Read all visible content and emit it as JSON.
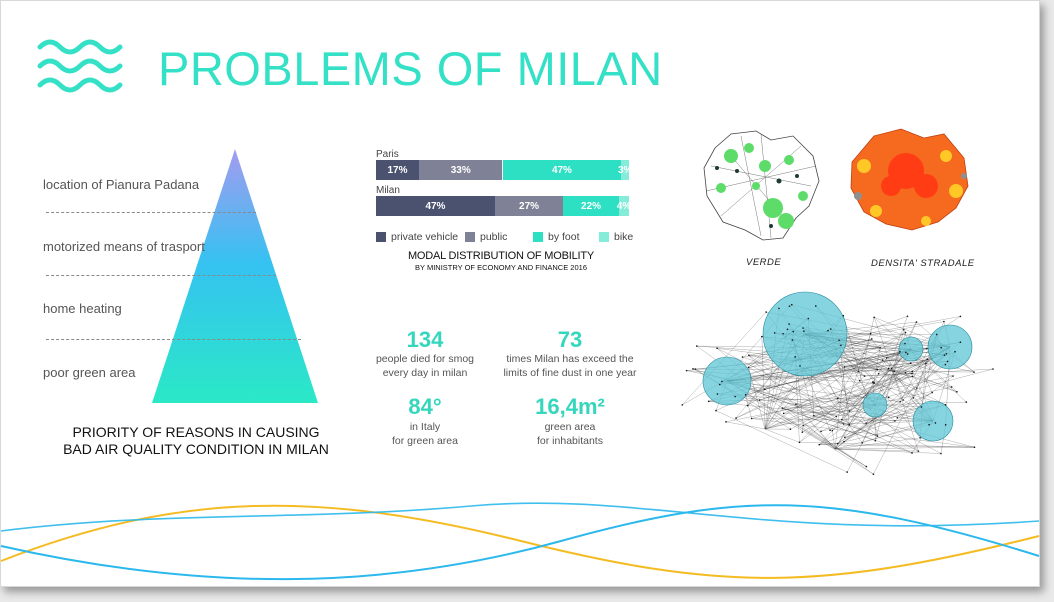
{
  "slide": {
    "title": "PROBLEMS OF MILAN",
    "wave_icon": "waves-icon"
  },
  "pyramid": {
    "reasons": [
      "location of Pianura Padana",
      "motorized means of trasport",
      "home heating",
      "poor green area"
    ],
    "caption_line1": "PRIORITY OF REASONS IN CAUSING",
    "caption_line2": "BAD AIR QUALITY CONDITION IN MILAN",
    "gradient_colors": [
      "#9b9ef2",
      "#33c6f0",
      "#2ae8c6"
    ]
  },
  "mobility": {
    "caption_title": "MODAL DISTRIBUTION OF MOBILITY",
    "caption_sub": "BY MINISTRY OF ECONOMY AND FINANCE 2016",
    "legend": [
      {
        "label": "private vehicle",
        "color": "#4a5270"
      },
      {
        "label": "public",
        "color": "#7f8296"
      },
      {
        "label": "by foot",
        "color": "#2ee0c3"
      },
      {
        "label": "bike",
        "color": "#85ecd9"
      }
    ],
    "rows": [
      {
        "city": "Paris",
        "labels": [
          "17%",
          "33%",
          "47%",
          "3%"
        ]
      },
      {
        "city": "Milan",
        "labels": [
          "47%",
          "27%",
          "22%",
          "4%"
        ]
      }
    ]
  },
  "chart_data": {
    "type": "bar",
    "orientation": "horizontal-stacked",
    "categories": [
      "Paris",
      "Milan"
    ],
    "series": [
      {
        "name": "private vehicle",
        "values": [
          17,
          47
        ]
      },
      {
        "name": "public",
        "values": [
          33,
          27
        ]
      },
      {
        "name": "by foot",
        "values": [
          47,
          22
        ]
      },
      {
        "name": "bike",
        "values": [
          3,
          4
        ]
      }
    ],
    "title": "MODAL DISTRIBUTION OF MOBILITY",
    "subtitle": "BY MINISTRY OF ECONOMY AND FINANCE 2016",
    "legend_position": "bottom"
  },
  "stats": [
    {
      "value": "134",
      "line1": "people died  for smog",
      "line2": "every day in milan"
    },
    {
      "value": "73",
      "line1": "times Milan has exceed the",
      "line2": "limits of fine dust in one year"
    },
    {
      "value": "84°",
      "line1": "in Italy",
      "line2": "for green area"
    },
    {
      "value": "16,4m²",
      "line1": "green area",
      "line2": "for inhabitants"
    }
  ],
  "maps": {
    "label_left": "VERDE",
    "label_right": "DENSITA' STRADALE"
  },
  "colors": {
    "accent": "#34e1c6",
    "wave_blue": "#2bb8ec",
    "wave_yellow": "#f4bb22"
  }
}
